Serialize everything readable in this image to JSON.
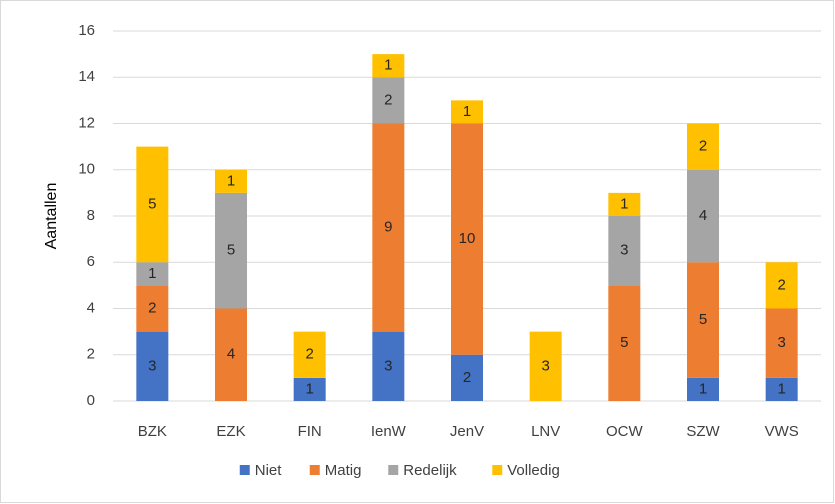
{
  "chart_data": {
    "type": "stacked_bar",
    "y_label": "Aantallen",
    "categories": [
      "BZK",
      "EZK",
      "FIN",
      "IenW",
      "JenV",
      "LNV",
      "OCW",
      "SZW",
      "VWS"
    ],
    "series": [
      {
        "name": "Niet",
        "color": "#4472c4",
        "values": [
          3,
          0,
          1,
          3,
          2,
          0,
          0,
          1,
          1
        ]
      },
      {
        "name": "Matig",
        "color": "#ed7d31",
        "values": [
          2,
          4,
          0,
          9,
          10,
          0,
          5,
          5,
          3
        ]
      },
      {
        "name": "Redelijk",
        "color": "#a5a5a5",
        "values": [
          1,
          5,
          0,
          2,
          0,
          0,
          3,
          4,
          0
        ]
      },
      {
        "name": "Volledig",
        "color": "#ffc000",
        "values": [
          5,
          1,
          2,
          1,
          1,
          3,
          1,
          2,
          2
        ]
      }
    ],
    "ylim": [
      0,
      16
    ],
    "yticks": [
      0,
      2,
      4,
      6,
      8,
      10,
      12,
      14,
      16
    ],
    "grid": true,
    "legend": "bottom"
  }
}
